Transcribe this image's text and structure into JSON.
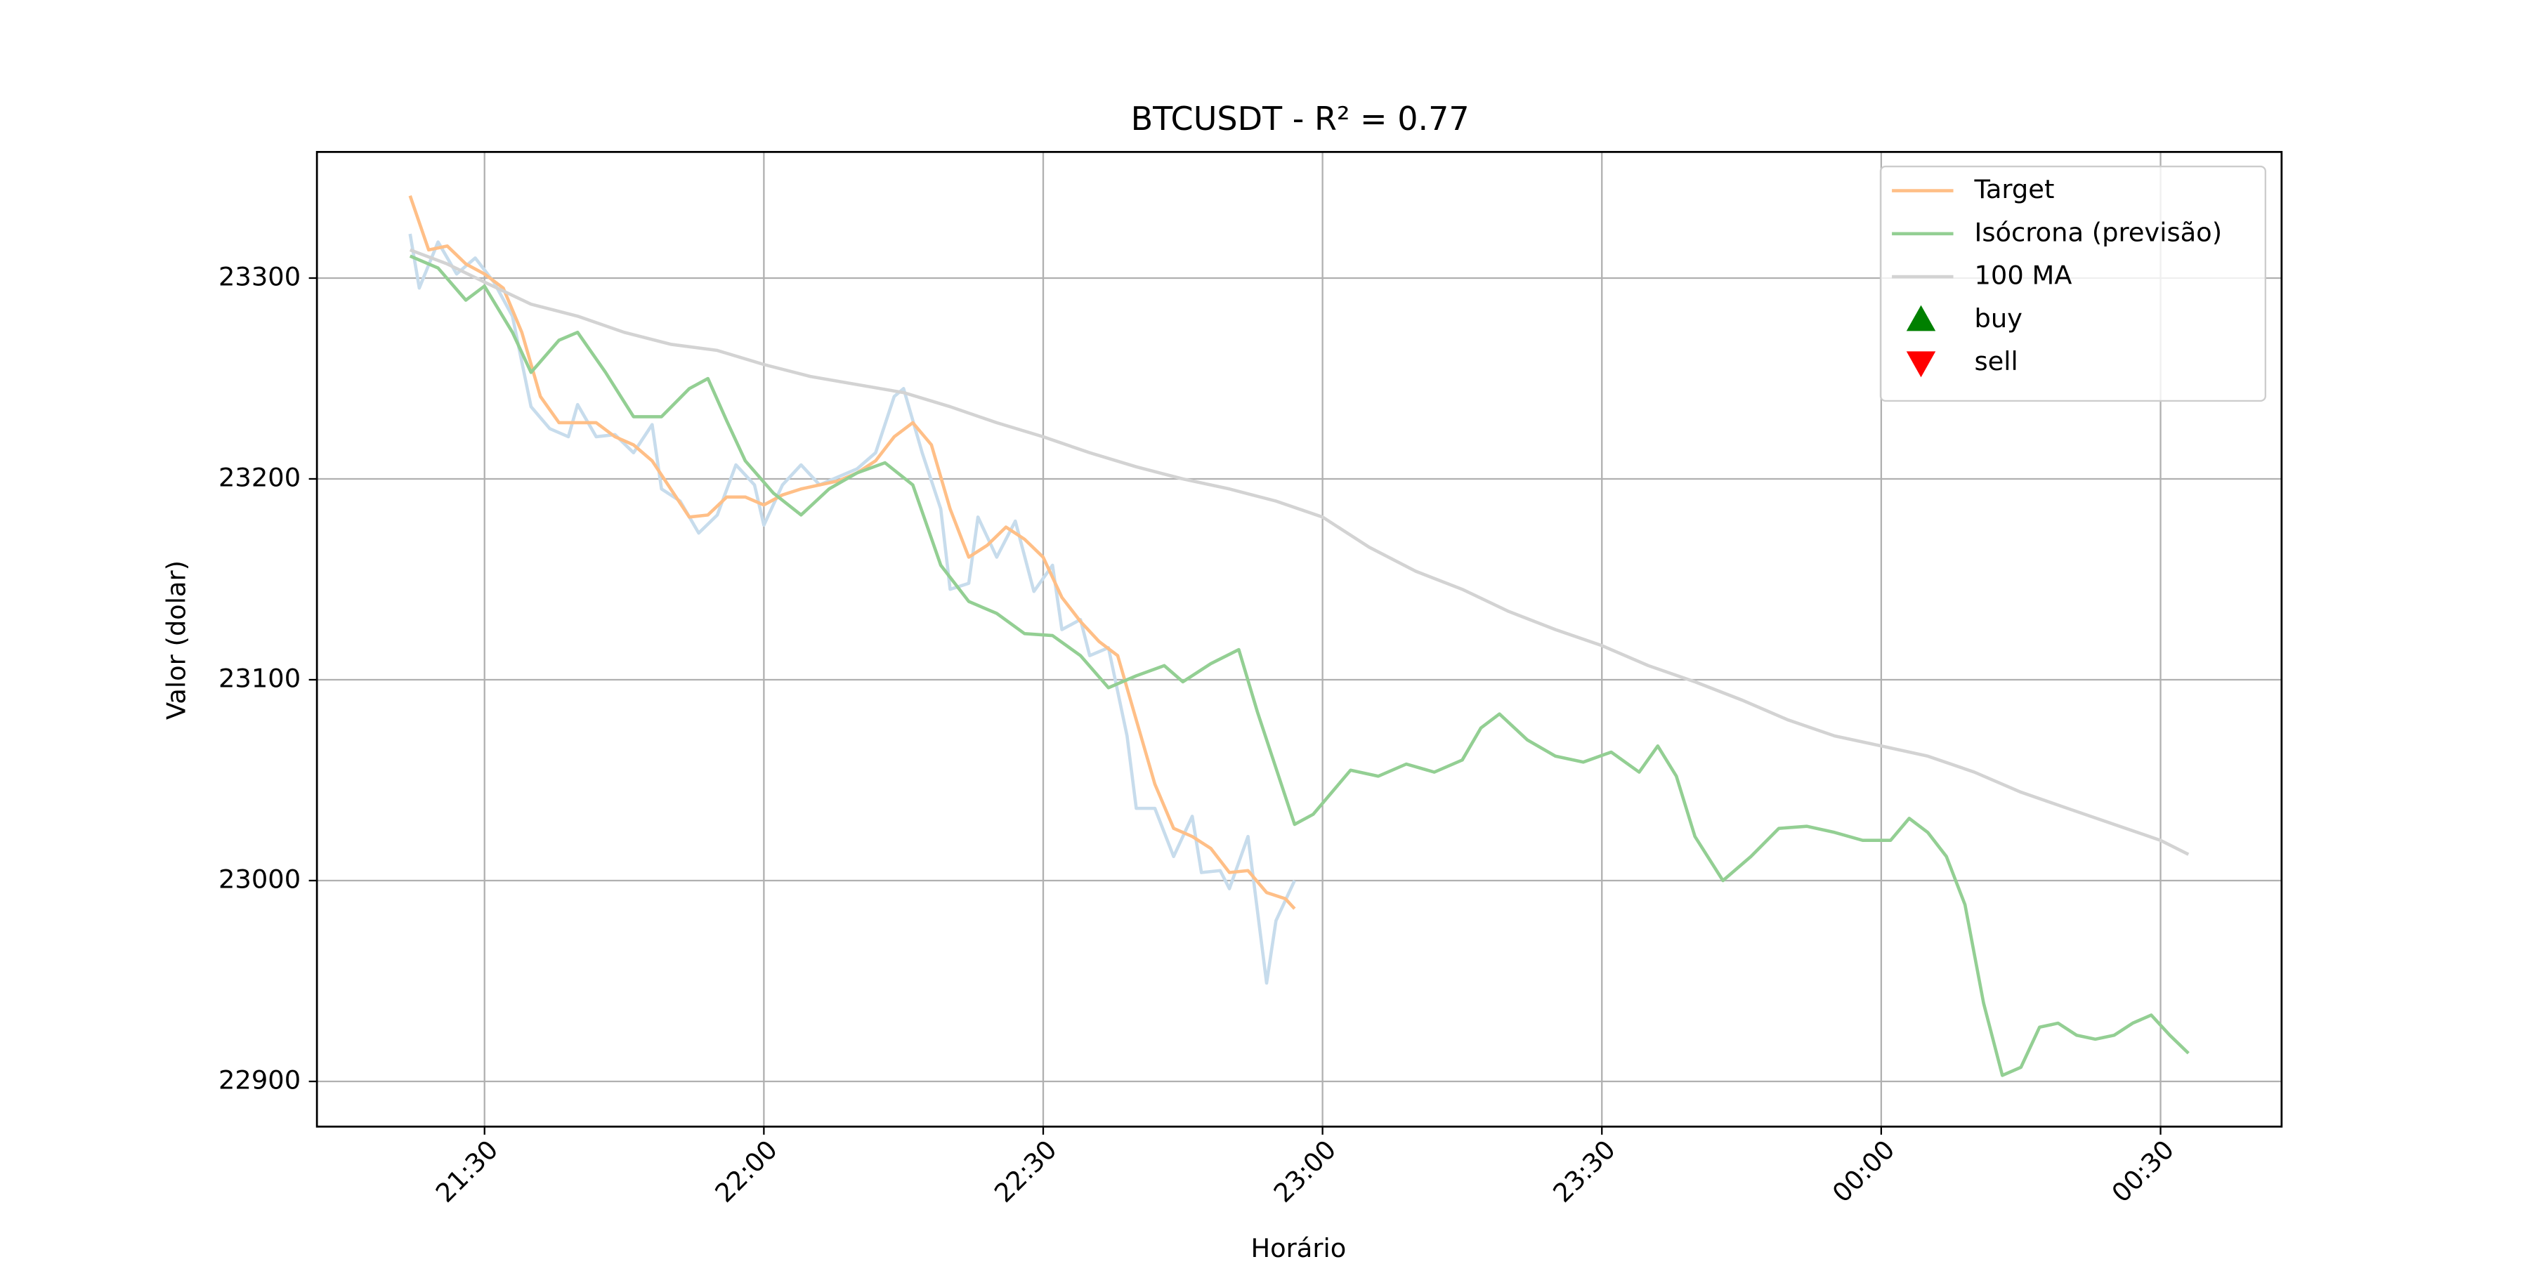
{
  "chart_data": {
    "type": "line",
    "title": "BTCUSDT - R² = 0.77",
    "x_label": "Horário",
    "y_label": "Valor (dolar)",
    "xlim": [
      "21:12",
      "00:43"
    ],
    "ylim": [
      22877.5,
      23362.8
    ],
    "xticks": [
      "21:30",
      "22:00",
      "22:30",
      "23:00",
      "23:30",
      "00:00",
      "00:30"
    ],
    "yticks": [
      22900,
      23000,
      23100,
      23200,
      23300
    ],
    "grid": true,
    "legend": "upper right",
    "series": [
      {
        "color": "#c7dcec",
        "x": [
          "21:22",
          "21:23",
          "21:25",
          "21:27",
          "21:29",
          "21:31",
          "21:33",
          "21:35",
          "21:37",
          "21:39",
          "21:40",
          "21:42",
          "21:44",
          "21:46",
          "21:48",
          "21:49",
          "21:51",
          "21:53",
          "21:55",
          "21:57",
          "21:59",
          "22:00",
          "22:02",
          "22:04",
          "22:06",
          "22:08",
          "22:10",
          "22:12",
          "22:14",
          "22:15",
          "22:17",
          "22:19",
          "22:20",
          "22:22",
          "22:23",
          "22:25",
          "22:27",
          "22:29",
          "22:31",
          "22:32",
          "22:34",
          "22:35",
          "22:37",
          "22:39",
          "22:40",
          "22:42",
          "22:44",
          "22:46",
          "22:47",
          "22:49",
          "22:50",
          "22:52",
          "22:54",
          "22:55",
          "22:57"
        ],
        "values": [
          23322,
          23295,
          23318,
          23302,
          23310,
          23298,
          23281,
          23236,
          23225,
          23221,
          23237,
          23221,
          23222,
          23213,
          23227,
          23195,
          23189,
          23173,
          23182,
          23207,
          23197,
          23177,
          23197,
          23207,
          23197,
          23201,
          23205,
          23213,
          23241,
          23245,
          23213,
          23185,
          23145,
          23148,
          23181,
          23161,
          23179,
          23144,
          23157,
          23125,
          23130,
          23112,
          23116,
          23072,
          23036,
          23036,
          23012,
          23032,
          23004,
          23005,
          22996,
          23022,
          22949,
          22980,
          23000
        ]
      },
      {
        "name": "Target",
        "color": "#ffbf87",
        "x": [
          "21:22",
          "21:24",
          "21:26",
          "21:28",
          "21:30",
          "21:32",
          "21:34",
          "21:36",
          "21:38",
          "21:40",
          "21:42",
          "21:44",
          "21:46",
          "21:48",
          "21:50",
          "21:52",
          "21:54",
          "21:56",
          "21:58",
          "22:00",
          "22:02",
          "22:04",
          "22:06",
          "22:08",
          "22:10",
          "22:12",
          "22:14",
          "22:16",
          "22:18",
          "22:20",
          "22:22",
          "22:24",
          "22:26",
          "22:28",
          "22:30",
          "22:32",
          "22:34",
          "22:36",
          "22:38",
          "22:40",
          "22:42",
          "22:44",
          "22:46",
          "22:48",
          "22:50",
          "22:52",
          "22:54",
          "22:56",
          "22:57"
        ],
        "values": [
          23341,
          23314,
          23316,
          23307,
          23302,
          23295,
          23273,
          23241,
          23228,
          23228,
          23228,
          23221,
          23217,
          23209,
          23195,
          23181,
          23182,
          23191,
          23191,
          23187,
          23192,
          23195,
          23197,
          23199,
          23203,
          23209,
          23221,
          23228,
          23217,
          23185,
          23161,
          23167,
          23176,
          23170,
          23161,
          23141,
          23129,
          23119,
          23112,
          23080,
          23048,
          23026,
          23022,
          23016,
          23004,
          23005,
          22994,
          22991,
          22986
        ]
      },
      {
        "name": "Isócrona (previsão)",
        "color": "#93cf93",
        "x": [
          "21:22",
          "21:25",
          "21:28",
          "21:30",
          "21:33",
          "21:35",
          "21:38",
          "21:40",
          "21:43",
          "21:46",
          "21:49",
          "21:52",
          "21:54",
          "21:56",
          "21:58",
          "22:01",
          "22:04",
          "22:07",
          "22:10",
          "22:13",
          "22:16",
          "22:19",
          "22:22",
          "22:25",
          "22:28",
          "22:31",
          "22:34",
          "22:37",
          "22:40",
          "22:43",
          "22:45",
          "22:48",
          "22:51",
          "22:53",
          "22:55",
          "22:57",
          "22:59",
          "23:01",
          "23:03",
          "23:06",
          "23:09",
          "23:12",
          "23:15",
          "23:17",
          "23:19",
          "23:22",
          "23:25",
          "23:28",
          "23:31",
          "23:34",
          "23:36",
          "23:38",
          "23:40",
          "23:43",
          "23:46",
          "23:49",
          "23:52",
          "23:55",
          "23:58",
          "00:01",
          "00:03",
          "00:05",
          "00:07",
          "00:09",
          "00:11",
          "00:13",
          "00:15",
          "00:17",
          "00:19",
          "00:21",
          "00:23",
          "00:25",
          "00:27",
          "00:29",
          "00:31",
          "00:33"
        ],
        "values": [
          23311,
          23305,
          23289,
          23296,
          23273,
          23253,
          23269,
          23273,
          23253,
          23231,
          23231,
          23245,
          23250,
          23229,
          23209,
          23193,
          23182,
          23195,
          23203,
          23208,
          23197,
          23157,
          23139,
          23133,
          23123,
          23122,
          23112,
          23096,
          23102,
          23107,
          23099,
          23108,
          23115,
          23084,
          23056,
          23028,
          23033,
          23044,
          23055,
          23052,
          23058,
          23054,
          23060,
          23076,
          23083,
          23070,
          23062,
          23059,
          23064,
          23054,
          23067,
          23052,
          23022,
          23000,
          23012,
          23026,
          23027,
          23024,
          23020,
          23020,
          23031,
          23024,
          23012,
          22988,
          22939,
          22903,
          22907,
          22927,
          22929,
          22923,
          22921,
          22923,
          22929,
          22933,
          22923,
          22914
        ]
      },
      {
        "name": "100 MA",
        "color": "#d3d3d3",
        "x": [
          "21:22",
          "21:26",
          "21:30",
          "21:35",
          "21:40",
          "21:45",
          "21:50",
          "21:55",
          "22:00",
          "22:05",
          "22:10",
          "22:15",
          "22:20",
          "22:25",
          "22:30",
          "22:35",
          "22:40",
          "22:45",
          "22:50",
          "22:55",
          "23:00",
          "23:05",
          "23:10",
          "23:15",
          "23:20",
          "23:25",
          "23:30",
          "23:35",
          "23:40",
          "23:45",
          "23:50",
          "23:55",
          "00:00",
          "00:05",
          "00:10",
          "00:15",
          "00:20",
          "00:25",
          "00:30",
          "00:33"
        ],
        "values": [
          23314,
          23307,
          23298,
          23287,
          23281,
          23273,
          23267,
          23264,
          23257,
          23251,
          23247,
          23243,
          23236,
          23228,
          23221,
          23213,
          23206,
          23200,
          23195,
          23189,
          23181,
          23166,
          23154,
          23145,
          23134,
          23125,
          23117,
          23107,
          23099,
          23090,
          23080,
          23072,
          23067,
          23062,
          23054,
          23044,
          23036,
          23028,
          23020,
          23013
        ]
      },
      {
        "name": "buy",
        "color": "#008000",
        "marker": "^",
        "x": [],
        "values": []
      },
      {
        "name": "sell",
        "color": "#ff0000",
        "marker": "v",
        "x": [],
        "values": []
      }
    ]
  }
}
